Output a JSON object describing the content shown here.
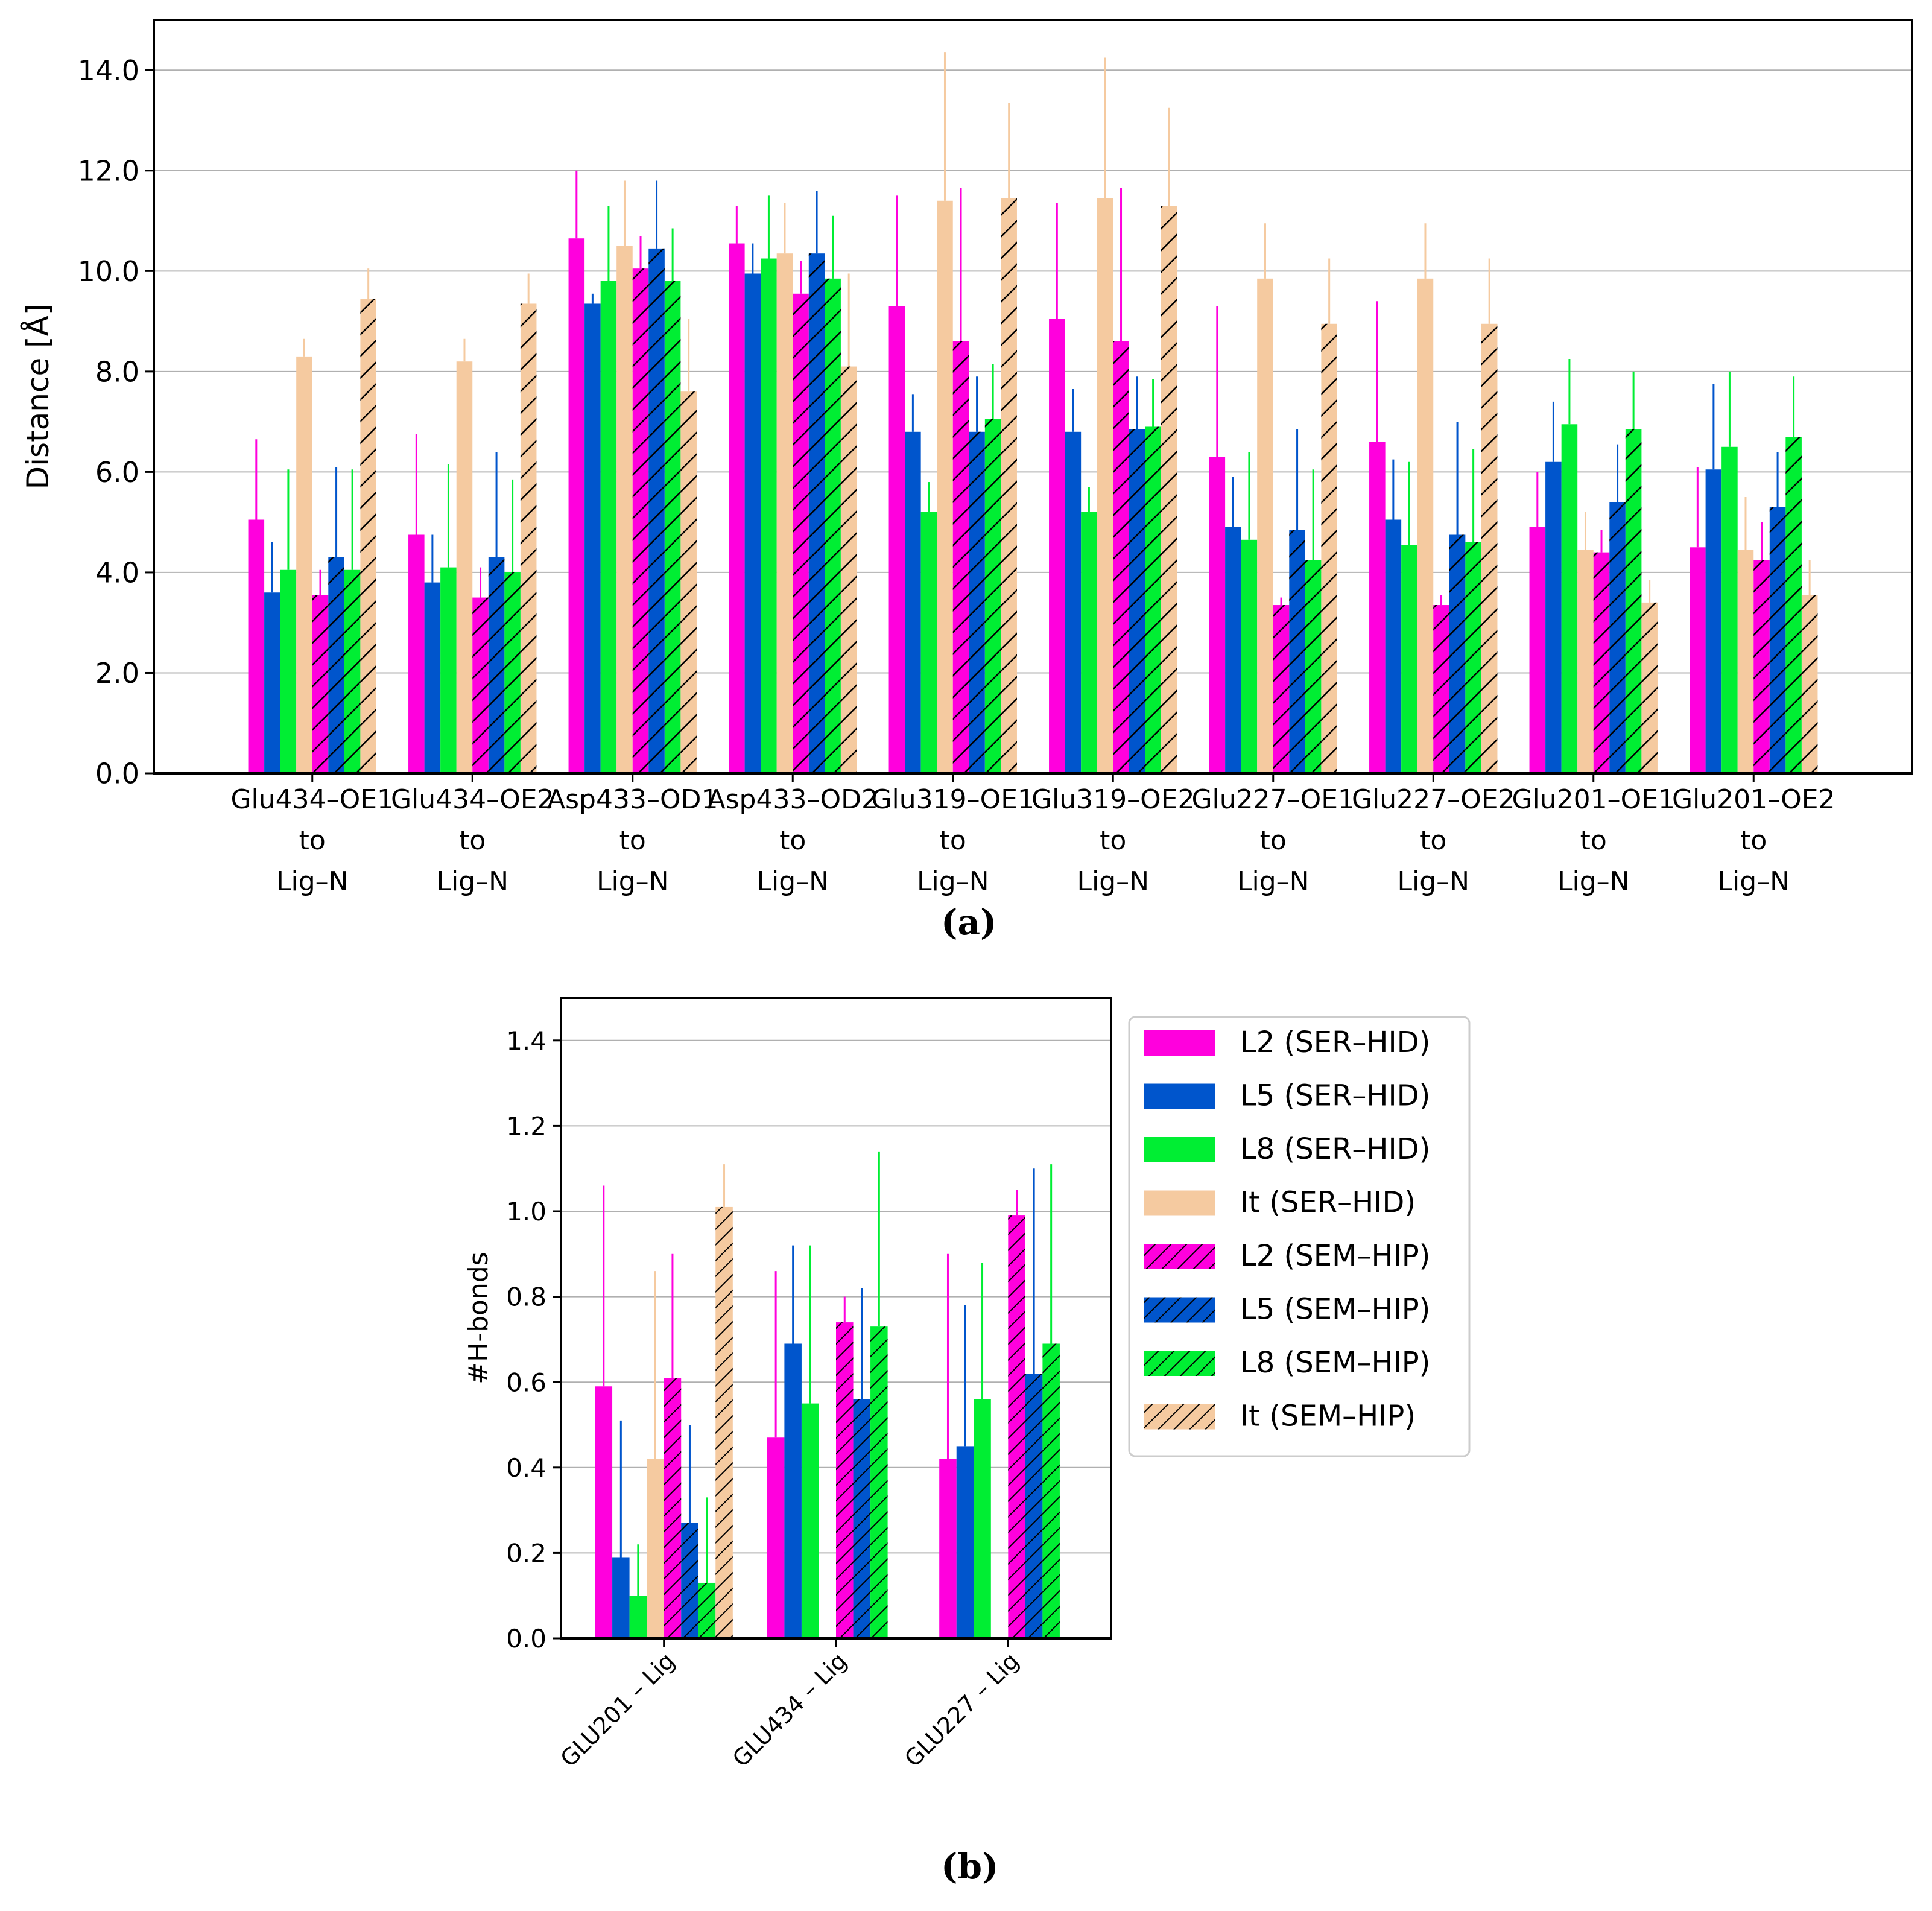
{
  "colors": {
    "magenta": "#ff00dd",
    "blue": "#0055cc",
    "green": "#00ee33",
    "tan": "#f5caa0",
    "axis": "#000000",
    "grid": "#b0b0b0"
  },
  "series_legend": [
    {
      "name": "L2 (SER–HID)",
      "color": "magenta",
      "hatch": false
    },
    {
      "name": "L5 (SER–HID)",
      "color": "blue",
      "hatch": false
    },
    {
      "name": "L8 (SER–HID)",
      "color": "green",
      "hatch": false
    },
    {
      "name": "It (SER–HID)",
      "color": "tan",
      "hatch": false
    },
    {
      "name": "L2 (SEM–HIP)",
      "color": "magenta",
      "hatch": true
    },
    {
      "name": "L5 (SEM–HIP)",
      "color": "blue",
      "hatch": true
    },
    {
      "name": "L8 (SEM–HIP)",
      "color": "green",
      "hatch": true
    },
    {
      "name": "It (SEM–HIP)",
      "color": "tan",
      "hatch": true
    }
  ],
  "labels": {
    "a": "(a)",
    "b": "(b)"
  },
  "chart_data": [
    {
      "id": "a",
      "type": "bar",
      "ylabel": "Distance [Å]",
      "ylim": [
        0,
        15
      ],
      "yticks": [
        "0.0",
        "2.0",
        "4.0",
        "6.0",
        "8.0",
        "10.0",
        "12.0",
        "14.0"
      ],
      "grid": true,
      "categories": [
        [
          "Glu434–OE1",
          "to",
          "Lig–N"
        ],
        [
          "Glu434–OE2",
          "to",
          "Lig–N"
        ],
        [
          "Asp433–OD1",
          "to",
          "Lig–N"
        ],
        [
          "Asp433–OD2",
          "to",
          "Lig–N"
        ],
        [
          "Glu319–OE1",
          "to",
          "Lig–N"
        ],
        [
          "Glu319–OE2",
          "to",
          "Lig–N"
        ],
        [
          "Glu227–OE1",
          "to",
          "Lig–N"
        ],
        [
          "Glu227–OE2",
          "to",
          "Lig–N"
        ],
        [
          "Glu201–OE1",
          "to",
          "Lig–N"
        ],
        [
          "Glu201–OE2",
          "to",
          "Lig–N"
        ]
      ],
      "series": [
        {
          "name": "L2 (SER–HID)",
          "values": [
            5.05,
            4.75,
            10.65,
            10.55,
            9.3,
            9.05,
            6.3,
            6.6,
            4.9,
            4.5
          ],
          "err": [
            1.6,
            2.0,
            1.35,
            0.75,
            2.2,
            2.3,
            3.0,
            2.8,
            1.1,
            1.6
          ]
        },
        {
          "name": "L5 (SER–HID)",
          "values": [
            3.6,
            3.8,
            9.35,
            9.95,
            6.8,
            6.8,
            4.9,
            5.05,
            6.2,
            6.05
          ],
          "err": [
            1.0,
            0.95,
            0.2,
            0.6,
            0.75,
            0.85,
            1.0,
            1.2,
            1.2,
            1.7
          ]
        },
        {
          "name": "L8 (SER–HID)",
          "values": [
            4.05,
            4.1,
            9.8,
            10.25,
            5.2,
            5.2,
            4.65,
            4.55,
            6.95,
            6.5
          ],
          "err": [
            2.0,
            2.05,
            1.5,
            1.25,
            0.6,
            0.5,
            1.75,
            1.65,
            1.3,
            1.5
          ]
        },
        {
          "name": "It (SER–HID)",
          "values": [
            8.3,
            8.2,
            10.5,
            10.35,
            11.4,
            11.45,
            9.85,
            9.85,
            4.45,
            4.45
          ],
          "err": [
            0.35,
            0.45,
            1.3,
            1.0,
            2.95,
            2.8,
            1.1,
            1.1,
            0.75,
            1.05
          ]
        },
        {
          "name": "L2 (SEM–HIP)",
          "values": [
            3.55,
            3.5,
            10.05,
            9.55,
            8.6,
            8.6,
            3.35,
            3.35,
            4.4,
            4.25
          ],
          "err": [
            0.5,
            0.6,
            0.65,
            0.65,
            3.05,
            3.05,
            0.15,
            0.2,
            0.45,
            0.75
          ]
        },
        {
          "name": "L5 (SEM–HIP)",
          "values": [
            4.3,
            4.3,
            10.45,
            10.35,
            6.8,
            6.85,
            4.85,
            4.75,
            5.4,
            5.3
          ],
          "err": [
            1.8,
            2.1,
            1.35,
            1.25,
            1.1,
            1.05,
            2.0,
            2.25,
            1.15,
            1.1
          ]
        },
        {
          "name": "L8 (SEM–HIP)",
          "values": [
            4.05,
            4.0,
            9.8,
            9.85,
            7.05,
            6.9,
            4.25,
            4.6,
            6.85,
            6.7
          ],
          "err": [
            2.0,
            1.85,
            1.05,
            1.25,
            1.1,
            0.95,
            1.8,
            1.85,
            1.15,
            1.2
          ]
        },
        {
          "name": "It (SEM–HIP)",
          "values": [
            9.45,
            9.35,
            7.6,
            8.1,
            11.45,
            11.3,
            8.95,
            8.95,
            3.4,
            3.55
          ],
          "err": [
            0.6,
            0.6,
            1.45,
            1.85,
            1.9,
            1.95,
            1.3,
            1.3,
            0.45,
            0.7
          ]
        }
      ]
    },
    {
      "id": "b",
      "type": "bar",
      "ylabel": "#H-bonds",
      "ylim": [
        0,
        1.5
      ],
      "yticks": [
        "0.0",
        "0.2",
        "0.4",
        "0.6",
        "0.8",
        "1.0",
        "1.2",
        "1.4"
      ],
      "grid": true,
      "categories": [
        "GLU201 – Lig",
        "GLU434 – Lig",
        "GLU227 – Lig"
      ],
      "series": [
        {
          "name": "L2 (SER–HID)",
          "values": [
            0.59,
            0.47,
            0.42
          ],
          "err": [
            0.47,
            0.39,
            0.48
          ]
        },
        {
          "name": "L5 (SER–HID)",
          "values": [
            0.19,
            0.69,
            0.45
          ],
          "err": [
            0.32,
            0.23,
            0.33
          ]
        },
        {
          "name": "L8 (SER–HID)",
          "values": [
            0.1,
            0.55,
            0.56
          ],
          "err": [
            0.12,
            0.37,
            0.32
          ]
        },
        {
          "name": "It (SER–HID)",
          "values": [
            0.42,
            0,
            0
          ],
          "err": [
            0.44,
            0,
            0
          ]
        },
        {
          "name": "L2 (SEM–HIP)",
          "values": [
            0.61,
            0.74,
            0.99
          ],
          "err": [
            0.29,
            0.06,
            0.06
          ]
        },
        {
          "name": "L5 (SEM–HIP)",
          "values": [
            0.27,
            0.56,
            0.62
          ],
          "err": [
            0.23,
            0.26,
            0.48
          ]
        },
        {
          "name": "L8 (SEM–HIP)",
          "values": [
            0.13,
            0.73,
            0.69
          ],
          "err": [
            0.2,
            0.41,
            0.42
          ]
        },
        {
          "name": "It (SEM–HIP)",
          "values": [
            1.01,
            0,
            0
          ],
          "err": [
            0.1,
            0,
            0
          ]
        }
      ]
    }
  ]
}
